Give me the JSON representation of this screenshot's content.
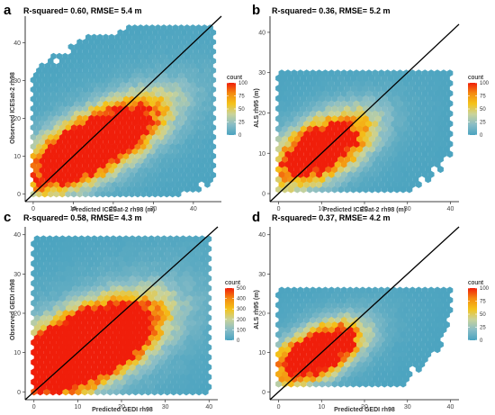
{
  "chart_data": [
    {
      "type": "heatmap",
      "panel": "a",
      "title": "R-squared= 0.60, RMSE= 5.4 m",
      "xlabel": "Predicted ICESat-2 rh98 (m)",
      "ylabel": "Observed ICESat-2 rh98",
      "xlim": [
        -2,
        47
      ],
      "ylim": [
        -2,
        47
      ],
      "xticks": [
        0,
        10,
        20,
        30,
        40
      ],
      "yticks": [
        0,
        10,
        20,
        30,
        40
      ],
      "legend": {
        "title": "count",
        "ticks": [
          0,
          25,
          50,
          75,
          100
        ],
        "max": 100,
        "placement": "right"
      },
      "reference_line": "1:1",
      "cloud": {
        "cx": 15,
        "cy": 13,
        "sx": 10,
        "sy": 7,
        "rho": 0.7,
        "peak": 260,
        "xr": [
          0,
          45
        ],
        "yr": [
          0,
          44
        ]
      }
    },
    {
      "type": "heatmap",
      "panel": "b",
      "title": "R-squared= 0.36, RMSE= 5.2 m",
      "xlabel": "Predicted ICESat-2 rh98 (m)",
      "ylabel": "ALS rh95 (m)",
      "xlim": [
        -2,
        42
      ],
      "ylim": [
        -2,
        44
      ],
      "xticks": [
        0,
        10,
        20,
        30,
        40
      ],
      "yticks": [
        0,
        10,
        20,
        30,
        40
      ],
      "legend": {
        "title": "count",
        "ticks": [
          0,
          25,
          50,
          75,
          100
        ],
        "max": 100,
        "placement": "right"
      },
      "reference_line": "1:1",
      "cloud": {
        "cx": 10,
        "cy": 11,
        "sx": 7,
        "sy": 5.5,
        "rho": 0.55,
        "peak": 180,
        "xr": [
          0,
          40
        ],
        "yr": [
          1,
          31
        ]
      }
    },
    {
      "type": "heatmap",
      "panel": "c",
      "title": "R-squared= 0.58, RMSE= 4.3 m",
      "xlabel": "Predicted GEDI rh98",
      "ylabel": "Observed GEDI rh98",
      "xlim": [
        -2,
        42
      ],
      "ylim": [
        -2,
        42
      ],
      "xticks": [
        0,
        10,
        20,
        30,
        40
      ],
      "yticks": [
        0,
        10,
        20,
        30,
        40
      ],
      "legend": {
        "title": "count",
        "ticks": [
          0,
          100,
          200,
          300,
          400,
          500
        ],
        "max": 500,
        "placement": "right"
      },
      "reference_line": "1:1",
      "cloud": {
        "cx": 11,
        "cy": 11,
        "sx": 9,
        "sy": 6.5,
        "rho": 0.6,
        "peak": 2200,
        "xr": [
          0,
          40
        ],
        "yr": [
          0,
          40
        ]
      }
    },
    {
      "type": "heatmap",
      "panel": "d",
      "title": "R-squared= 0.37, RMSE= 4.2 m",
      "xlabel": "Predicted GEDI rh98",
      "ylabel": "ALS rh95 (m)",
      "xlim": [
        -2,
        42
      ],
      "ylim": [
        -2,
        42
      ],
      "xticks": [
        0,
        10,
        20,
        30,
        40
      ],
      "yticks": [
        0,
        10,
        20,
        30,
        40
      ],
      "legend": {
        "title": "count",
        "ticks": [
          0,
          25,
          50,
          75,
          100
        ],
        "max": 100,
        "placement": "right"
      },
      "reference_line": "1:1",
      "cloud": {
        "cx": 9,
        "cy": 10,
        "sx": 6,
        "sy": 4.5,
        "rho": 0.55,
        "peak": 220,
        "xr": [
          0,
          40
        ],
        "yr": [
          2,
          26
        ]
      }
    }
  ],
  "colors": {
    "colorbar": [
      "#4aa3c0",
      "#89bdc6",
      "#c9d39a",
      "#f4c21a",
      "#f48a10",
      "#f01e0a"
    ],
    "reference_line": "#000000"
  }
}
